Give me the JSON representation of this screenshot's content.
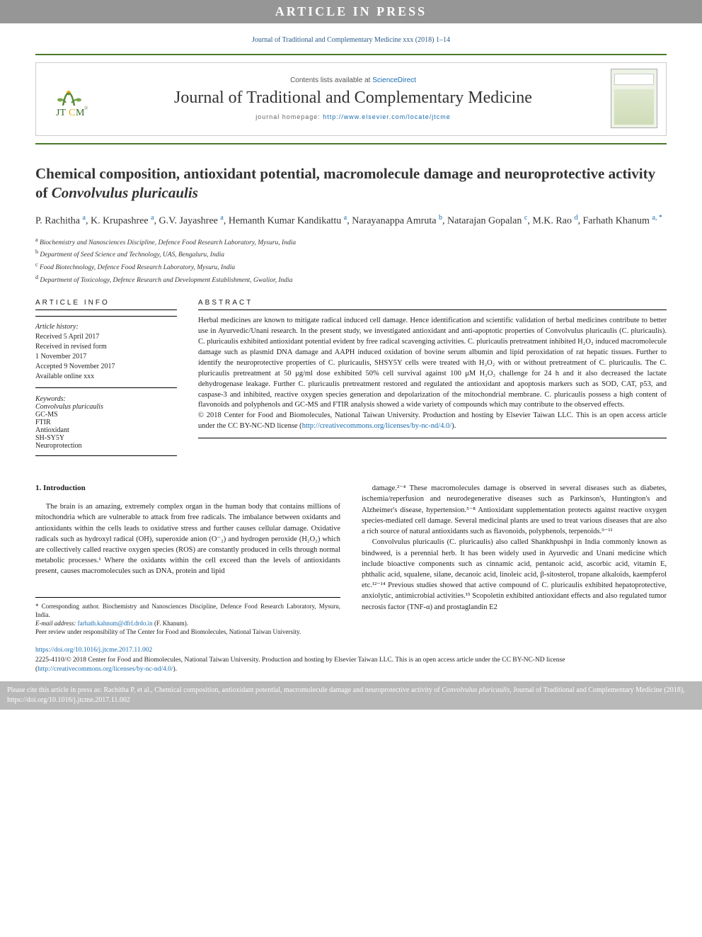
{
  "colors": {
    "banner_bg": "#969696",
    "banner_text": "#ffffff",
    "rule_green": "#4a7a2a",
    "link_blue": "#1a6caf",
    "cite_bg": "#b9b9b9",
    "text": "#222222"
  },
  "banner": {
    "text": "ARTICLE IN PRESS"
  },
  "running_head": "Journal of Traditional and Complementary Medicine xxx (2018) 1–14",
  "masthead": {
    "contents_prefix": "Contents lists available at ",
    "contents_link": "ScienceDirect",
    "journal_name": "Journal of Traditional and Complementary Medicine",
    "homepage_label": "journal homepage: ",
    "homepage_url": "http://www.elsevier.com/locate/jtcme"
  },
  "title": {
    "plain": "Chemical composition, antioxidant potential, macromolecule damage and neuroprotective activity of ",
    "italic": "Convolvulus pluricaulis"
  },
  "authors_html": "P. Rachitha <sup>a</sup>, K. Krupashree <sup>a</sup>, G.V. Jayashree <sup>a</sup>, Hemanth Kumar Kandikattu <sup>a</sup>, Narayanappa Amruta <sup>b</sup>, Natarajan Gopalan <sup>c</sup>, M.K. Rao <sup>d</sup>, Farhath Khanum <sup>a, *</sup>",
  "affiliations": [
    {
      "sup": "a",
      "text": "Biochemistry and Nanosciences Discipline, Defence Food Research Laboratory, Mysuru, India"
    },
    {
      "sup": "b",
      "text": "Department of Seed Science and Technology, UAS, Bengaluru, India"
    },
    {
      "sup": "c",
      "text": "Food Biotechnology, Defence Food Research Laboratory, Mysuru, India"
    },
    {
      "sup": "d",
      "text": "Department of Toxicology, Defence Research and Development Establishment, Gwalior, India"
    }
  ],
  "article_info": {
    "head": "ARTICLE INFO",
    "history_label": "Article history:",
    "history": [
      "Received 5 April 2017",
      "Received in revised form",
      "1 November 2017",
      "Accepted 9 November 2017",
      "Available online xxx"
    ],
    "keywords_label": "Keywords:",
    "keywords": [
      {
        "text": "Convolvulus pluricaulis",
        "italic": true
      },
      {
        "text": "GC-MS",
        "italic": false
      },
      {
        "text": "FTIR",
        "italic": false
      },
      {
        "text": "Antioxidant",
        "italic": false
      },
      {
        "text": "SH-SY5Y",
        "italic": false
      },
      {
        "text": "Neuroprotection",
        "italic": false
      }
    ]
  },
  "abstract": {
    "head": "ABSTRACT",
    "text": "Herbal medicines are known to mitigate radical induced cell damage. Hence identification and scientific validation of herbal medicines contribute to better use in Ayurvedic/Unani research. In the present study, we investigated antioxidant and anti-apoptotic properties of Convolvulus pluricaulis (C. pluricaulis). C. pluricaulis exhibited antioxidant potential evident by free radical scavenging activities. C. pluricaulis pretreatment inhibited H₂O₂ induced macromolecule damage such as plasmid DNA damage and AAPH induced oxidation of bovine serum albumin and lipid peroxidation of rat hepatic tissues. Further to identify the neuroprotective properties of C. pluricaulis, SHSY5Y cells were treated with H₂O₂ with or without pretreatment of C. pluricaulis. The C. pluricaulis pretreatment at 50 μg/ml dose exhibited 50% cell survival against 100 μM H₂O₂ challenge for 24 h and it also decreased the lactate dehydrogenase leakage. Further C. pluricaulis pretreatment restored and regulated the antioxidant and apoptosis markers such as SOD, CAT, p53, and caspase-3 and inhibited, reactive oxygen species generation and depolarization of the mitochondrial membrane. C. pluricaulis possess a high content of flavonoids and polyphenols and GC-MS and FTIR analysis showed a wide variety of compounds which may contribute to the observed effects.",
    "copyright": "© 2018 Center for Food and Biomolecules, National Taiwan University. Production and hosting by Elsevier Taiwan LLC. This is an open access article under the CC BY-NC-ND license (",
    "license_url": "http://creativecommons.org/licenses/by-nc-nd/4.0/",
    "license_close": ")."
  },
  "intro": {
    "head": "1. Introduction",
    "col1_p1": "The brain is an amazing, extremely complex organ in the human body that contains millions of mitochondria which are vulnerable to attack from free radicals. The imbalance between oxidants and antioxidants within the cells leads to oxidative stress and further causes cellular damage. Oxidative radicals such as hydroxyl radical (OH), superoxide anion (O⁻₂) and hydrogen peroxide (H₂O₂) which are collectively called reactive oxygen species (ROS) are constantly produced in cells through normal metabolic processes.¹ Where the oxidants within the cell exceed than the levels of antioxidants present, causes macromolecules such as DNA, protein and lipid",
    "col2_p1": "damage.²⁻⁴ These macromolecules damage is observed in several diseases such as diabetes, ischemia/reperfusion and neurodegenerative diseases such as Parkinson's, Huntington's and Alzheimer's disease, hypertension.⁵⁻⁸ Antioxidant supplementation protects against reactive oxygen species-mediated cell damage. Several medicinal plants are used to treat various diseases that are also a rich source of natural antioxidants such as flavonoids, polyphenols, terpenoids.⁹⁻¹¹",
    "col2_p2": "Convolvulus pluricaulis (C. pluricaulis) also called Shankhpushpi in India commonly known as bindweed, is a perennial herb. It has been widely used in Ayurvedic and Unani medicine which include bioactive components such as cinnamic acid, pentanoic acid, ascorbic acid, vitamin E, phthalic acid, squalene, silane, decanoic acid, linoleic acid, β-sitosterol, tropane alkaloids, kaempferol etc.¹²⁻¹⁴ Previous studies showed that active compound of C. pluricaulis exhibited hepatoprotective, anxiolytic, antimicrobial activities.¹⁵ Scopoletin exhibited antioxidant effects and also regulated tumor necrosis factor (TNF-α) and prostaglandin E2"
  },
  "footnotes": {
    "corr": "* Corresponding author. Biochemistry and Nanosciences Discipline, Defence Food Research Laboratory, Mysuru, India.",
    "email_label": "E-mail address: ",
    "email": "farhath.kahnum@dfrl.drdo.in",
    "email_paren": " (F. Khanum).",
    "peer": "Peer review under responsibility of The Center for Food and Biomolecules, National Taiwan University."
  },
  "doi": {
    "url": "https://doi.org/10.1016/j.jtcme.2017.11.002",
    "issn_line": "2225-4110/© 2018 Center for Food and Biomolecules, National Taiwan University. Production and hosting by Elsevier Taiwan LLC. This is an open access article under the CC BY-NC-ND license (",
    "license_url": "http://creativecommons.org/licenses/by-nc-nd/4.0/",
    "close": ")."
  },
  "cite_box": {
    "prefix": "Please cite this article in press as: Rachitha P, et al., Chemical composition, antioxidant potential, macromolecule damage and neuroprotective activity of ",
    "italic": "Convolvulus pluricaulis",
    "suffix": ", Journal of Traditional and Complementary Medicine (2018), https://doi.org/10.1016/j.jtcme.2017.11.002"
  }
}
